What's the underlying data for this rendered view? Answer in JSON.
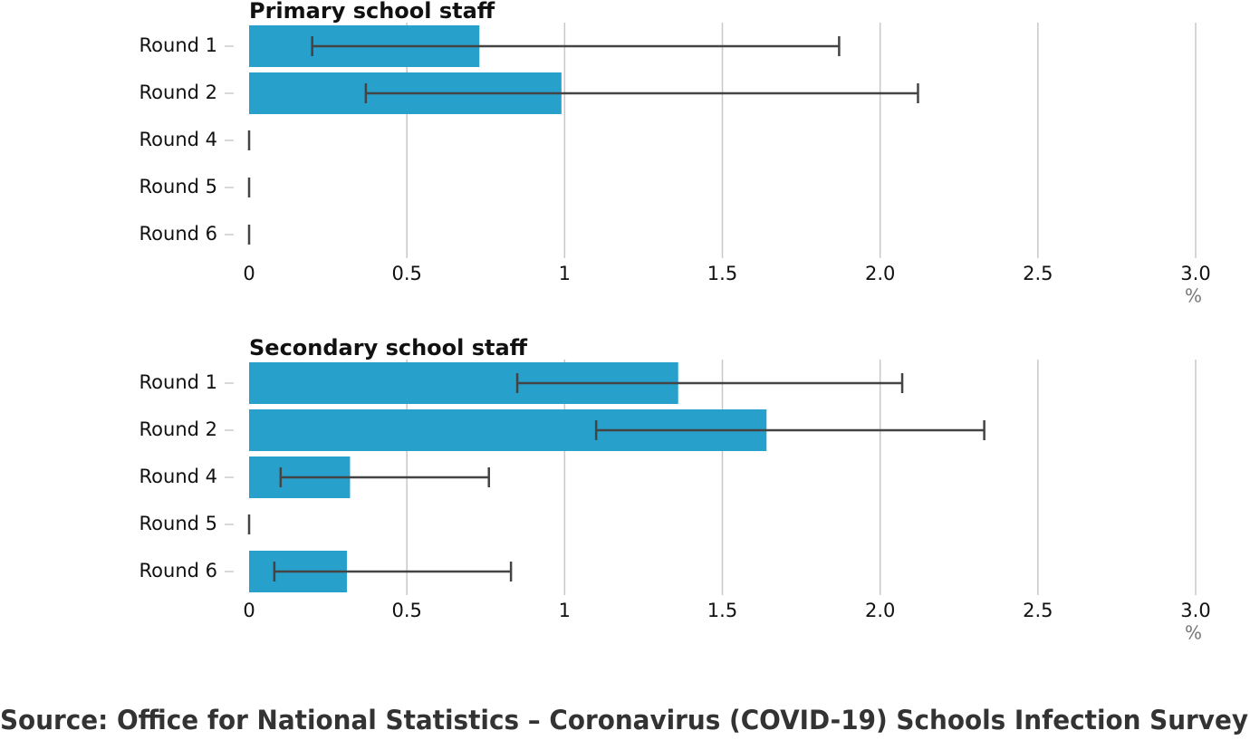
{
  "chart_data": [
    {
      "type": "bar",
      "orientation": "horizontal",
      "title": "Primary school staff",
      "categories": [
        "Round 1",
        "Round 2",
        "Round 4",
        "Round 5",
        "Round 6"
      ],
      "values": [
        0.73,
        0.99,
        0,
        0,
        0
      ],
      "ci_low": [
        0.2,
        0.37,
        0,
        0,
        0
      ],
      "ci_high": [
        1.87,
        2.12,
        0,
        0,
        0
      ],
      "color": "#27a0cc",
      "error_color": "#444444",
      "xlim": [
        0,
        3
      ],
      "xticks": [
        0,
        0.5,
        1,
        1.5,
        {
          "value": 2,
          "label": "2.0"
        },
        2.5,
        {
          "value": 3,
          "label": "3.0"
        }
      ],
      "x_label": "%",
      "grid": true
    },
    {
      "type": "bar",
      "orientation": "horizontal",
      "title": "Secondary school staff",
      "categories": [
        "Round 1",
        "Round 2",
        "Round 4",
        "Round 5",
        "Round 6"
      ],
      "values": [
        1.36,
        1.64,
        0.32,
        0,
        0.31
      ],
      "ci_low": [
        0.85,
        1.1,
        0.1,
        0,
        0.08
      ],
      "ci_high": [
        2.07,
        2.33,
        0.76,
        0,
        0.83
      ],
      "color": "#27a0cc",
      "error_color": "#444444",
      "xlim": [
        0,
        3
      ],
      "xticks": [
        0,
        0.5,
        1,
        1.5,
        {
          "value": 2,
          "label": "2.0"
        },
        2.5,
        {
          "value": 3,
          "label": "3.0"
        }
      ],
      "x_label": "%",
      "grid": true
    }
  ],
  "source": "Source: Office for National Statistics – Coronavirus (COVID-19) Schools Infection Survey"
}
